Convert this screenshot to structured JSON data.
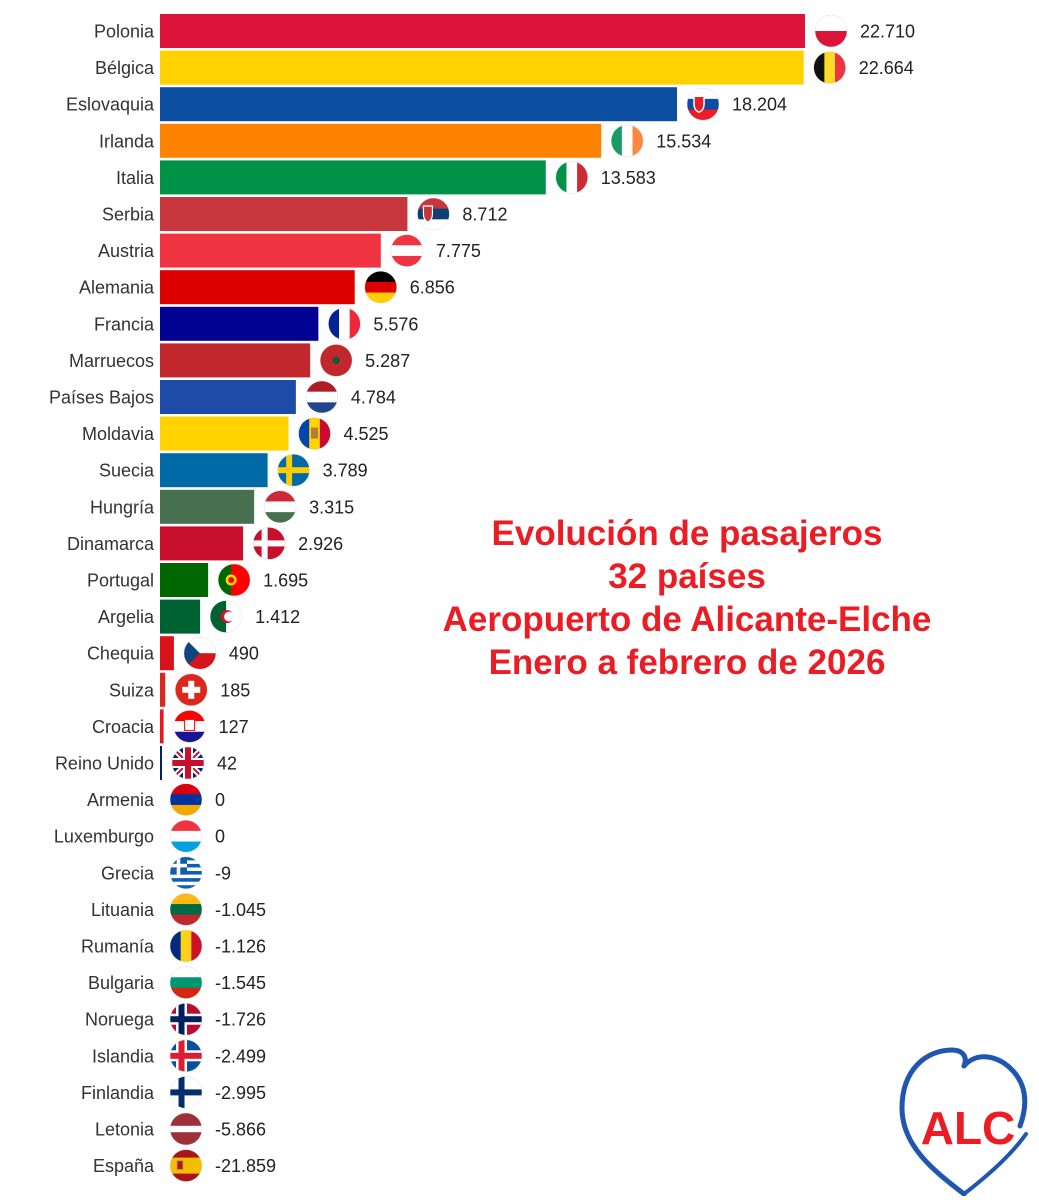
{
  "title_lines": [
    "Evolución de pasajeros",
    "32 países",
    "Aeropuerto de Alicante-Elche",
    "Enero a febrero de 2026"
  ],
  "logo_text": "ALC",
  "colors": {
    "title": "#ea1c24",
    "logo_blue": "#1e56b0",
    "logo_red": "#ea1c24"
  },
  "chart_data": {
    "type": "bar",
    "orientation": "horizontal",
    "categories": [
      "Polonia",
      "Bélgica",
      "Eslovaquia",
      "Irlanda",
      "Italia",
      "Serbia",
      "Austria",
      "Alemania",
      "Francia",
      "Marruecos",
      "Países Bajos",
      "Moldavia",
      "Suecia",
      "Hungría",
      "Dinamarca",
      "Portugal",
      "Argelia",
      "Chequia",
      "Suiza",
      "Croacia",
      "Reino Unido",
      "Armenia",
      "Luxemburgo",
      "Grecia",
      "Lituania",
      "Rumanía",
      "Bulgaria",
      "Noruega",
      "Islandia",
      "Finlandia",
      "Letonia",
      "España"
    ],
    "values": [
      22710,
      22664,
      18204,
      15534,
      13583,
      8712,
      7775,
      6856,
      5576,
      5287,
      4784,
      4525,
      3789,
      3315,
      2926,
      1695,
      1412,
      490,
      185,
      127,
      42,
      0,
      0,
      -9,
      -1045,
      -1126,
      -1545,
      -1726,
      -2499,
      -2995,
      -5866,
      -21859
    ],
    "value_labels": [
      "22.710",
      "22.664",
      "18.204",
      "15.534",
      "13.583",
      "8.712",
      "7.775",
      "6.856",
      "5.576",
      "5.287",
      "4.784",
      "4.525",
      "3.789",
      "3.315",
      "2.926",
      "1.695",
      "1.412",
      "490",
      "185",
      "127",
      "42",
      "0",
      "0",
      "-9",
      "-1.045",
      "-1.126",
      "-1.545",
      "-1.726",
      "-2.499",
      "-2.995",
      "-5.866",
      "-21.859"
    ],
    "bar_colors": [
      "#dc143c",
      "#fdd200",
      "#0b4ea2",
      "#ff8200",
      "#009246",
      "#c6363c",
      "#ef3340",
      "#dd0000",
      "#000091",
      "#c1272d",
      "#1e4aa8",
      "#ffd200",
      "#006aa7",
      "#477050",
      "#c8102e",
      "#006600",
      "#006233",
      "#d7141a",
      "#da291c",
      "#e8191e",
      "#012169",
      "#d90012",
      "#ef3340",
      "#0d5eaf",
      "#fdb913",
      "#002b7f",
      "#00966e",
      "#ba0c2f",
      "#02529c",
      "#002f6c",
      "#9e3039",
      "#aa151b"
    ],
    "flags": [
      "poland",
      "belgium",
      "slovakia",
      "ireland",
      "italy",
      "serbia",
      "austria",
      "germany",
      "france",
      "morocco",
      "netherlands",
      "moldova",
      "sweden",
      "hungary",
      "denmark",
      "portugal",
      "algeria",
      "czechia",
      "switzerland",
      "croatia",
      "united-kingdom",
      "armenia",
      "luxembourg",
      "greece",
      "lithuania",
      "romania",
      "bulgaria",
      "norway",
      "iceland",
      "finland",
      "latvia",
      "spain"
    ],
    "title": "Evolución de pasajeros 32 países Aeropuerto de Alicante-Elche Enero a febrero de 2026",
    "grid": false,
    "legend": "none"
  }
}
